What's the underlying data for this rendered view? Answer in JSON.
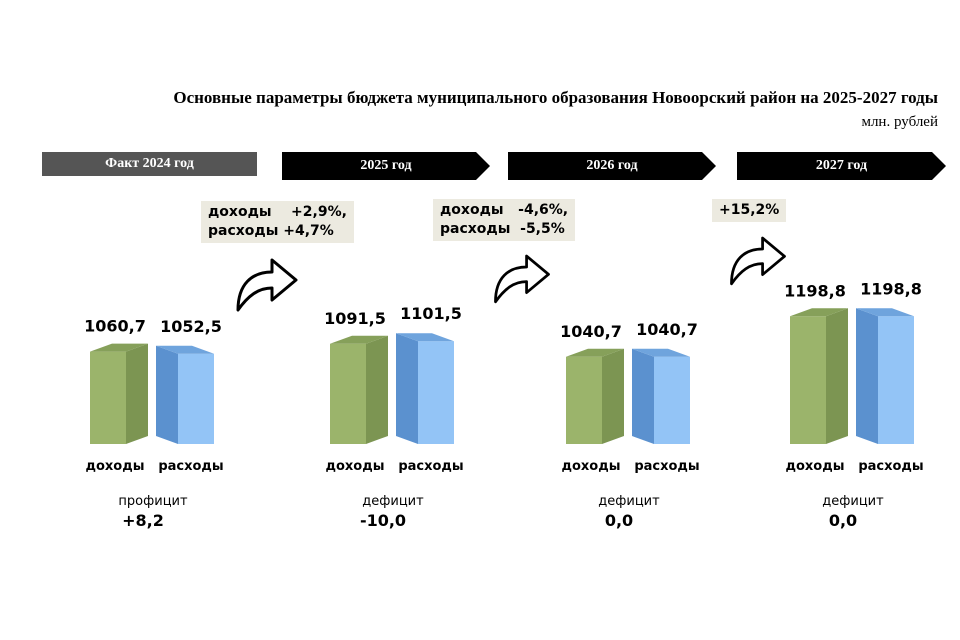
{
  "title": "Основные параметры бюджета муниципального образования Новоорский район на 2025-2027 годы",
  "unit": "млн. рублей",
  "periods": [
    {
      "label": "Факт 2024 год",
      "style": "fact"
    },
    {
      "label": "2025 год",
      "style": "arrow"
    },
    {
      "label": "2026 год",
      "style": "arrow"
    },
    {
      "label": "2027 год",
      "style": "arrow"
    }
  ],
  "changes": [
    {
      "text": "доходы    +2,9%,\nрасходы +4,7%"
    },
    {
      "text": "доходы   -4,6%,\nрасходы  -5,5%"
    },
    {
      "text": "+15,2%"
    }
  ],
  "colors": {
    "income_front": "#9bb46b",
    "income_side": "#7c9552",
    "income_top": "#86a05a",
    "expense_front": "#93c4f6",
    "expense_side": "#5b91cf",
    "expense_top": "#6fa4dd",
    "fact_band": "#555555",
    "arrow_band": "#000000",
    "change_box": "#eceae0"
  },
  "chart_data": {
    "type": "bar",
    "categories": [
      "Факт 2024 год",
      "2025 год",
      "2026 год",
      "2027 год"
    ],
    "series": [
      {
        "name": "доходы",
        "values": [
          1060.7,
          1091.5,
          1040.7,
          1198.8
        ],
        "labels": [
          "1060,7",
          "1091,5",
          "1040,7",
          "1198,8"
        ]
      },
      {
        "name": "расходы",
        "values": [
          1052.5,
          1101.5,
          1040.7,
          1198.8
        ],
        "labels": [
          "1052,5",
          "1101,5",
          "1040,7",
          "1198,8"
        ]
      }
    ],
    "balance": [
      {
        "label": "профицит",
        "value": "+8,2"
      },
      {
        "label": "дефицит",
        "value": "-10,0"
      },
      {
        "label": "дефицит",
        "value": "0,0"
      },
      {
        "label": "дефицит",
        "value": "0,0"
      }
    ],
    "bar_labels": [
      "доходы",
      "расходы"
    ]
  }
}
